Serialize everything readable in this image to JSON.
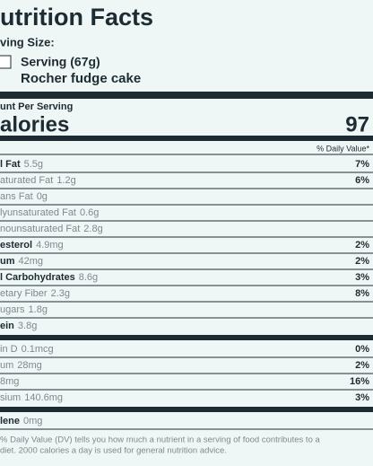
{
  "header": {
    "title": "utrition Facts",
    "serving_size_label": "ving Size:",
    "serving": "Serving (67g)",
    "food": "Rocher fudge cake"
  },
  "calories": {
    "label": "unt Per Serving",
    "name": "alories",
    "value": "97"
  },
  "dv_header": "% Daily Value*",
  "sections": [
    [
      {
        "label": "l Fat",
        "amount": "5.5g",
        "dv": "7%",
        "bold": true
      },
      {
        "label": "aturated Fat",
        "amount": "1.2g",
        "dv": "6%"
      },
      {
        "label": "ans Fat",
        "amount": "0g"
      },
      {
        "label": "lyunsaturated Fat",
        "amount": "0.6g"
      },
      {
        "label": "nounsaturated Fat",
        "amount": "2.8g"
      },
      {
        "label": "esterol",
        "amount": "4.9mg",
        "dv": "2%",
        "bold": true
      },
      {
        "label": "um",
        "amount": "42mg",
        "dv": "2%",
        "bold": true
      },
      {
        "label": "l Carbohydrates",
        "amount": "8.6g",
        "dv": "3%",
        "bold": true
      },
      {
        "label": "etary Fiber",
        "amount": "2.3g",
        "dv": "8%"
      },
      {
        "label": "ugars",
        "amount": "1.8g"
      },
      {
        "label": "ein",
        "amount": "3.8g",
        "bold": true
      }
    ],
    [
      {
        "label": "in D",
        "amount": "0.1mcg",
        "dv": "0%"
      },
      {
        "label": "um",
        "amount": "28mg",
        "dv": "2%"
      },
      {
        "label": "",
        "amount": "8mg",
        "dv": "16%"
      },
      {
        "label": "sium",
        "amount": "140.6mg",
        "dv": "3%"
      }
    ],
    [
      {
        "label": "lene",
        "amount": "0mg",
        "bold": true
      }
    ]
  ],
  "footnote": [
    "% Daily Value (DV) tells you how much a nutrient in a serving of food contributes to a",
    "diet. 2000 calories a day is used for general nutrition advice."
  ]
}
